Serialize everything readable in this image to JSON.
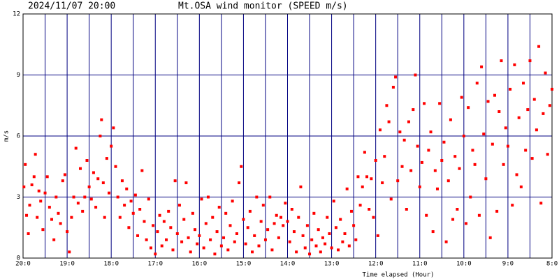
{
  "chart_data": {
    "type": "scatter",
    "title": "Mt.OSA wind monitor (SPEED m/s)",
    "timestamp": "2024/11/07 20:00",
    "y_label": "m/s",
    "x_label": "Time elapsed (Hour)",
    "color": "#ff0000",
    "grid_color": "#000080",
    "grid": true,
    "xlim": [
      0,
      12
    ],
    "ylim": [
      0,
      12
    ],
    "yticks": [
      0,
      3,
      6,
      9,
      12
    ],
    "xticks": [
      {
        "value": 0,
        "label": "20:0"
      },
      {
        "value": 1,
        "label": "19:0"
      },
      {
        "value": 2,
        "label": "18:0"
      },
      {
        "value": 3,
        "label": "17:0"
      },
      {
        "value": 4,
        "label": "16:0"
      },
      {
        "value": 5,
        "label": "15:0"
      },
      {
        "value": 6,
        "label": "14:0"
      },
      {
        "value": 7,
        "label": "13:0"
      },
      {
        "value": 8,
        "label": "12:0"
      },
      {
        "value": 9,
        "label": "11:0"
      },
      {
        "value": 10,
        "label": "10:0"
      },
      {
        "value": 11,
        "label": "9:0"
      },
      {
        "value": 12,
        "label": "8:0"
      }
    ],
    "xgrid": [
      0.5,
      1.5,
      2.5,
      3.5,
      4.5,
      5.5,
      6.5,
      7.5,
      8.5,
      9.5,
      10.5,
      11.5
    ],
    "x": [
      0.02,
      0.05,
      0.08,
      0.12,
      0.15,
      0.2,
      0.25,
      0.28,
      0.32,
      0.36,
      0.4,
      0.45,
      0.5,
      0.55,
      0.6,
      0.65,
      0.7,
      0.75,
      0.8,
      0.85,
      0.9,
      0.95,
      1.0,
      1.05,
      1.1,
      1.15,
      1.2,
      1.25,
      1.3,
      1.35,
      1.4,
      1.45,
      1.5,
      1.55,
      1.6,
      1.65,
      1.7,
      1.75,
      1.78,
      1.82,
      1.85,
      1.9,
      1.95,
      2.0,
      2.05,
      2.1,
      2.15,
      2.2,
      2.25,
      2.3,
      2.35,
      2.4,
      2.45,
      2.5,
      2.55,
      2.6,
      2.65,
      2.7,
      2.75,
      2.8,
      2.85,
      2.9,
      2.95,
      3.0,
      3.05,
      3.1,
      3.15,
      3.2,
      3.25,
      3.3,
      3.35,
      3.4,
      3.45,
      3.5,
      3.55,
      3.6,
      3.65,
      3.7,
      3.75,
      3.8,
      3.85,
      3.9,
      3.95,
      4.0,
      4.05,
      4.1,
      4.15,
      4.2,
      4.25,
      4.3,
      4.35,
      4.4,
      4.45,
      4.5,
      4.55,
      4.6,
      4.65,
      4.7,
      4.75,
      4.8,
      4.85,
      4.9,
      4.95,
      5.0,
      5.05,
      5.1,
      5.15,
      5.2,
      5.25,
      5.3,
      5.35,
      5.4,
      5.45,
      5.5,
      5.55,
      5.6,
      5.65,
      5.7,
      5.75,
      5.8,
      5.85,
      5.9,
      5.95,
      6.0,
      6.05,
      6.1,
      6.15,
      6.2,
      6.25,
      6.3,
      6.35,
      6.4,
      6.45,
      6.5,
      6.55,
      6.6,
      6.65,
      6.7,
      6.75,
      6.8,
      6.85,
      6.9,
      6.95,
      7.0,
      7.05,
      7.1,
      7.15,
      7.2,
      7.25,
      7.3,
      7.35,
      7.4,
      7.45,
      7.5,
      7.55,
      7.6,
      7.65,
      7.7,
      7.75,
      7.8,
      7.85,
      7.9,
      7.95,
      8.0,
      8.05,
      8.1,
      8.15,
      8.2,
      8.25,
      8.3,
      8.35,
      8.4,
      8.45,
      8.5,
      8.55,
      8.6,
      8.65,
      8.7,
      8.75,
      8.8,
      8.85,
      8.9,
      8.95,
      9.0,
      9.05,
      9.1,
      9.15,
      9.2,
      9.25,
      9.3,
      9.35,
      9.4,
      9.45,
      9.5,
      9.55,
      9.6,
      9.65,
      9.7,
      9.75,
      9.8,
      9.85,
      9.9,
      9.95,
      10.0,
      10.05,
      10.1,
      10.15,
      10.2,
      10.25,
      10.3,
      10.35,
      10.4,
      10.45,
      10.5,
      10.55,
      10.6,
      10.65,
      10.7,
      10.75,
      10.8,
      10.85,
      10.9,
      10.95,
      11.0,
      11.05,
      11.1,
      11.15,
      11.2,
      11.25,
      11.3,
      11.35,
      11.4,
      11.45,
      11.5,
      11.55,
      11.6,
      11.65,
      11.7,
      11.75,
      11.8,
      11.85,
      11.9,
      11.95,
      12.0
    ],
    "values": [
      3.5,
      4.6,
      2.1,
      1.2,
      2.6,
      3.6,
      4.0,
      5.1,
      2.0,
      3.3,
      2.8,
      1.4,
      3.2,
      4.0,
      2.5,
      1.9,
      0.9,
      3.0,
      2.2,
      1.7,
      3.8,
      4.1,
      1.3,
      0.3,
      2.0,
      3.0,
      5.4,
      2.7,
      4.4,
      2.3,
      3.0,
      4.8,
      3.5,
      2.9,
      4.2,
      2.5,
      3.9,
      6.0,
      6.8,
      3.7,
      2.0,
      4.9,
      3.2,
      5.5,
      6.4,
      4.5,
      3.0,
      2.0,
      3.8,
      2.6,
      3.4,
      1.5,
      2.8,
      2.2,
      3.1,
      1.1,
      2.4,
      4.3,
      1.8,
      0.9,
      2.9,
      0.5,
      1.6,
      0.2,
      1.3,
      2.1,
      0.6,
      1.8,
      0.9,
      2.3,
      1.5,
      0.4,
      3.8,
      1.2,
      2.6,
      0.8,
      1.9,
      3.7,
      1.0,
      0.3,
      2.2,
      1.4,
      0.7,
      1.1,
      2.9,
      0.5,
      1.7,
      3.0,
      0.9,
      2.0,
      0.2,
      1.3,
      2.5,
      0.6,
      1.0,
      2.2,
      0.4,
      1.6,
      2.8,
      0.8,
      1.2,
      3.7,
      4.5,
      1.9,
      0.7,
      1.5,
      2.3,
      0.3,
      1.1,
      3.0,
      0.6,
      1.8,
      2.6,
      0.9,
      1.4,
      3.0,
      0.4,
      1.7,
      2.1,
      1.0,
      2.0,
      1.6,
      2.7,
      1.8,
      0.8,
      2.4,
      1.3,
      0.3,
      2.0,
      3.5,
      1.1,
      0.5,
      1.6,
      0.2,
      0.9,
      2.2,
      0.6,
      1.4,
      0.3,
      1.0,
      0.7,
      2.0,
      1.2,
      0.5,
      2.8,
      1.5,
      0.4,
      1.9,
      0.8,
      1.2,
      3.4,
      0.6,
      2.3,
      1.6,
      0.9,
      4.0,
      2.6,
      3.5,
      5.2,
      4.0,
      2.4,
      3.9,
      2.0,
      4.8,
      1.1,
      6.3,
      3.7,
      5.0,
      7.5,
      6.7,
      2.9,
      8.4,
      8.9,
      3.8,
      6.2,
      4.5,
      5.8,
      2.4,
      6.7,
      4.3,
      7.3,
      9.0,
      5.5,
      3.5,
      4.7,
      7.6,
      2.1,
      5.3,
      6.2,
      1.3,
      4.3,
      3.4,
      7.6,
      4.8,
      5.7,
      0.8,
      3.8,
      6.8,
      1.9,
      5.0,
      2.4,
      4.4,
      7.9,
      6.0,
      1.7,
      7.4,
      3.0,
      5.3,
      4.6,
      8.6,
      2.1,
      9.4,
      6.1,
      3.9,
      7.7,
      1.0,
      5.6,
      8.0,
      2.3,
      7.2,
      9.7,
      4.6,
      6.4,
      5.5,
      8.3,
      2.6,
      9.5,
      4.1,
      6.9,
      3.5,
      8.6,
      5.3,
      7.3,
      9.7,
      4.9,
      7.8,
      6.3,
      10.4,
      2.7,
      7.1,
      9.1,
      5.1,
      7.5,
      8.3
    ]
  }
}
